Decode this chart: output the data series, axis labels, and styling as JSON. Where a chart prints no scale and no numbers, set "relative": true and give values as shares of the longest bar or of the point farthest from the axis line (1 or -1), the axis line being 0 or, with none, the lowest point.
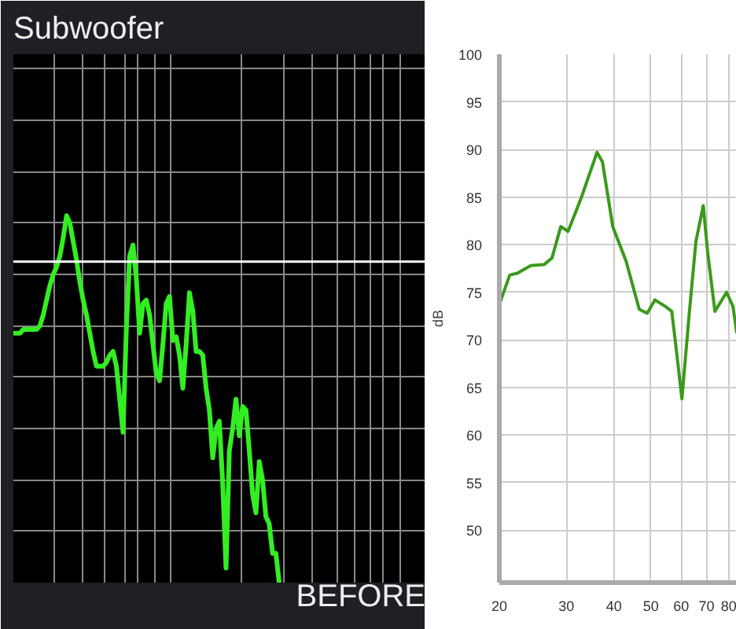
{
  "chart_data": [
    {
      "type": "line",
      "title": "Subwoofer",
      "relative": true,
      "grid": true,
      "annotations": [
        "BEFORE"
      ],
      "categories": [
        null,
        null,
        null,
        null,
        null,
        null,
        null,
        null,
        null,
        null,
        null,
        null,
        null,
        null,
        null,
        null,
        null,
        null,
        null,
        null,
        null,
        null,
        null,
        null,
        null,
        null,
        null,
        null,
        null,
        null,
        null,
        null,
        null,
        null,
        null,
        null,
        null,
        null,
        null,
        null,
        null,
        null,
        null,
        null,
        null,
        null,
        null,
        null,
        null,
        null,
        null,
        null,
        null,
        null,
        null,
        null,
        null,
        null,
        null,
        null,
        null,
        null,
        null,
        null,
        null,
        null,
        null,
        null,
        null,
        null,
        null,
        null,
        null,
        null,
        null,
        null,
        null,
        null,
        null,
        null,
        null,
        null,
        null,
        null,
        null,
        null,
        null,
        null,
        null,
        null,
        null,
        null,
        null,
        null,
        null,
        null,
        null,
        null,
        null,
        null,
        null,
        null,
        null,
        null,
        null,
        null,
        null,
        null,
        null,
        null,
        null,
        null,
        null,
        null,
        null,
        null,
        null,
        null,
        null,
        null,
        null,
        null,
        null,
        null,
        null
      ],
      "series": [
        {
          "color": "#33ee22",
          "values": [
            0.68,
            0.68,
            0.68,
            0.69,
            0.69,
            0.69,
            0.69,
            0.69,
            0.7,
            0.73,
            0.77,
            0.81,
            0.84,
            0.86,
            0.89,
            0.94,
            1.0,
            0.98,
            0.93,
            0.88,
            0.82,
            0.77,
            0.73,
            0.68,
            0.63,
            0.59,
            0.59,
            0.59,
            0.6,
            0.62,
            0.63,
            0.59,
            0.5,
            0.41,
            0.69,
            0.89,
            0.92,
            0.83,
            0.68,
            0.76,
            0.77,
            0.73,
            0.65,
            0.57,
            0.55,
            0.65,
            0.76,
            0.78,
            0.66,
            0.67,
            0.62,
            0.53,
            0.65,
            0.79,
            0.74,
            0.63,
            0.63,
            0.62,
            0.53,
            0.47,
            0.34,
            0.42,
            0.44,
            0.27,
            0.04,
            0.36,
            0.42,
            0.5,
            0.4,
            0.48,
            0.47,
            0.36,
            0.24,
            0.19,
            0.33,
            0.28,
            0.18,
            0.16,
            0.08,
            0.08,
            0,
            null,
            null,
            null,
            null,
            null,
            null,
            null,
            null,
            null,
            null,
            null,
            null,
            null,
            null,
            null,
            null,
            null,
            null,
            null,
            null,
            null,
            null,
            null,
            null,
            null,
            null,
            null,
            null,
            null,
            null,
            null,
            null,
            null,
            null,
            null,
            null,
            null,
            null,
            null,
            null,
            null,
            null,
            null,
            null
          ]
        }
      ],
      "ref_lines": [
        {
          "axis": "y",
          "value": 0.875,
          "color": "#ffffff"
        }
      ]
    },
    {
      "type": "line",
      "ylabel": "dB",
      "log": "x",
      "grid": true,
      "xlim": [
        20,
        84
      ],
      "xticks": [
        20,
        30,
        40,
        50,
        60,
        70,
        80
      ],
      "ylim": [
        44.5,
        100
      ],
      "yticks": [
        50,
        55,
        60,
        65,
        70,
        75,
        80,
        85,
        90,
        95,
        100
      ],
      "series": [
        {
          "color": "#3a9a1a",
          "x": [
            20,
            21.3,
            22.3,
            24.2,
            26.2,
            27.5,
            29.0,
            30.3,
            32.8,
            36.1,
            37.3,
            39.7,
            43.0,
            46.6,
            48.9,
            51.2,
            54.6,
            56.7,
            58.0,
            60.3,
            63.0,
            65.6,
            68.6,
            70.4,
            73.6,
            79.0,
            82.1,
            84
          ],
          "values": [
            73.7,
            76.8,
            77.0,
            77.8,
            77.9,
            78.6,
            81.9,
            81.4,
            84.9,
            89.7,
            88.7,
            81.9,
            78.3,
            73.2,
            72.8,
            74.2,
            73.5,
            73.0,
            69.7,
            63.8,
            72.7,
            80.3,
            84.1,
            79.3,
            73.0,
            75.0,
            73.5,
            70.7
          ]
        }
      ]
    }
  ]
}
